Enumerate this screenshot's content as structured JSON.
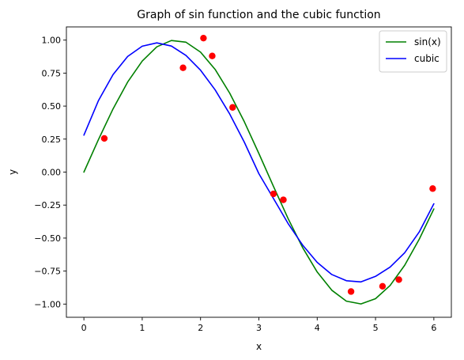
{
  "chart_data": {
    "type": "scatter",
    "title": "Graph of sin function and the cubic function",
    "xlabel": "x",
    "ylabel": "y",
    "xlim": [
      -0.3,
      6.3
    ],
    "ylim": [
      -1.1,
      1.1
    ],
    "xticks": [
      0,
      1,
      2,
      3,
      4,
      5,
      6
    ],
    "xtick_labels": [
      "0",
      "1",
      "2",
      "3",
      "4",
      "5",
      "6"
    ],
    "yticks": [
      -1.0,
      -0.75,
      -0.5,
      -0.25,
      0.0,
      0.25,
      0.5,
      0.75,
      1.0
    ],
    "ytick_labels": [
      "−1.00",
      "−0.75",
      "−0.50",
      "−0.25",
      "0.00",
      "0.25",
      "0.50",
      "0.75",
      "1.00"
    ],
    "grid": false,
    "legend_position": "top-right",
    "series": [
      {
        "name": "sin(x)",
        "kind": "line",
        "color": "#008000",
        "x": [
          0,
          0.25,
          0.5,
          0.75,
          1.0,
          1.25,
          1.5,
          1.75,
          2.0,
          2.25,
          2.5,
          2.75,
          3.0,
          3.25,
          3.5,
          3.75,
          4.0,
          4.25,
          4.5,
          4.75,
          5.0,
          5.25,
          5.5,
          5.75,
          6.0
        ],
        "y": [
          0.0,
          0.247,
          0.479,
          0.682,
          0.841,
          0.949,
          0.997,
          0.984,
          0.909,
          0.778,
          0.598,
          0.382,
          0.141,
          -0.108,
          -0.351,
          -0.572,
          -0.757,
          -0.895,
          -0.978,
          -0.999,
          -0.959,
          -0.859,
          -0.706,
          -0.508,
          -0.279
        ]
      },
      {
        "name": "cubic",
        "kind": "line",
        "color": "#0000ff",
        "x": [
          0,
          0.25,
          0.5,
          0.75,
          1.0,
          1.25,
          1.5,
          1.75,
          2.0,
          2.25,
          2.5,
          2.75,
          3.0,
          3.25,
          3.5,
          3.75,
          4.0,
          4.25,
          4.5,
          4.75,
          5.0,
          5.25,
          5.5,
          5.75,
          6.0
        ],
        "y": [
          0.28,
          0.542,
          0.739,
          0.876,
          0.954,
          0.979,
          0.955,
          0.884,
          0.772,
          0.623,
          0.44,
          0.227,
          -0.012,
          -0.2,
          -0.389,
          -0.553,
          -0.684,
          -0.776,
          -0.823,
          -0.832,
          -0.79,
          -0.72,
          -0.611,
          -0.453,
          -0.24
        ]
      },
      {
        "kind": "scatter",
        "color": "#ff0000",
        "x": [
          0.35,
          1.7,
          2.05,
          2.2,
          2.55,
          3.25,
          3.42,
          4.58,
          5.12,
          5.4,
          5.98
        ],
        "y": [
          0.255,
          0.79,
          1.015,
          0.88,
          0.49,
          -0.165,
          -0.21,
          -0.905,
          -0.865,
          -0.815,
          -0.125
        ]
      }
    ]
  }
}
